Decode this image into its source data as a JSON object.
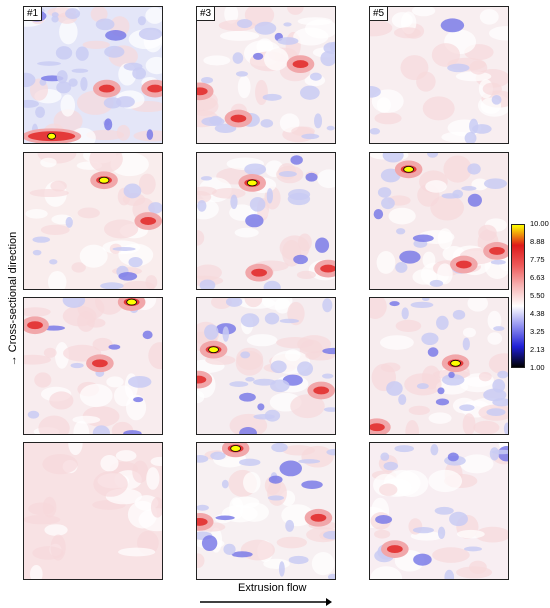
{
  "figure": {
    "panel_labels": [
      "#1",
      "#3",
      "#5"
    ],
    "y_axis_label": "Cross-sectional direction",
    "x_axis_label": "Extrusion flow"
  },
  "colorbar": {
    "ticks": [
      "10.00",
      "8.88",
      "7.75",
      "6.63",
      "5.50",
      "4.38",
      "3.25",
      "2.13",
      "1.00"
    ],
    "colors": [
      "#000000",
      "#1f1fd6",
      "#8f8ff0",
      "#ffffff",
      "#f6b4b4",
      "#ee5a5a",
      "#dd1a1a",
      "#ffff00"
    ]
  },
  "panels": [
    {
      "column_label": "#1",
      "base": "#e4e6f8",
      "blue": 8,
      "red": [
        [
          0.2,
          0.95,
          "big"
        ],
        [
          0.6,
          0.6,
          "small"
        ],
        [
          0.95,
          0.6,
          "small"
        ]
      ]
    },
    {
      "column_label": "#3",
      "base": "#f7eef0",
      "blue": 6,
      "red": [
        [
          0.3,
          0.82,
          "small"
        ],
        [
          0.75,
          0.42,
          "small"
        ],
        [
          0.02,
          0.62,
          "small"
        ]
      ]
    },
    {
      "column_label": "#5",
      "base": "#f8eef0",
      "blue": 2,
      "red": []
    },
    {
      "column_label": "",
      "base": "#f9eded",
      "blue": 3,
      "red": [
        [
          0.58,
          0.2,
          "hot"
        ],
        [
          0.9,
          0.5,
          "small"
        ]
      ]
    },
    {
      "column_label": "",
      "base": "#f6eef0",
      "blue": 4,
      "red": [
        [
          0.4,
          0.22,
          "hot"
        ],
        [
          0.95,
          0.85,
          "small"
        ],
        [
          0.45,
          0.88,
          "small"
        ]
      ]
    },
    {
      "column_label": "",
      "base": "#f7eaec",
      "blue": 5,
      "red": [
        [
          0.28,
          0.12,
          "hot"
        ],
        [
          0.68,
          0.82,
          "small"
        ],
        [
          0.92,
          0.72,
          "small"
        ]
      ]
    },
    {
      "column_label": "",
      "base": "#f8ecee",
      "blue": 3,
      "red": [
        [
          0.78,
          0.03,
          "hot"
        ],
        [
          0.08,
          0.2,
          "small"
        ],
        [
          0.55,
          0.48,
          "small"
        ]
      ]
    },
    {
      "column_label": "",
      "base": "#f5edf0",
      "blue": 6,
      "red": [
        [
          0.12,
          0.38,
          "hot"
        ],
        [
          0.9,
          0.68,
          "small"
        ],
        [
          0.01,
          0.6,
          "small"
        ]
      ]
    },
    {
      "column_label": "",
      "base": "#f7ecee",
      "blue": 6,
      "red": [
        [
          0.62,
          0.48,
          "hot"
        ],
        [
          0.05,
          0.95,
          "small"
        ]
      ]
    },
    {
      "column_label": "",
      "base": "#f8e2e4",
      "blue": 0,
      "red": []
    },
    {
      "column_label": "",
      "base": "#f7f0f2",
      "blue": 6,
      "red": [
        [
          0.28,
          0.04,
          "hot"
        ],
        [
          0.88,
          0.55,
          "small"
        ],
        [
          0.02,
          0.58,
          "small"
        ]
      ]
    },
    {
      "column_label": "",
      "base": "#f8eef2",
      "blue": 5,
      "red": [
        [
          0.18,
          0.78,
          "small"
        ]
      ]
    }
  ]
}
